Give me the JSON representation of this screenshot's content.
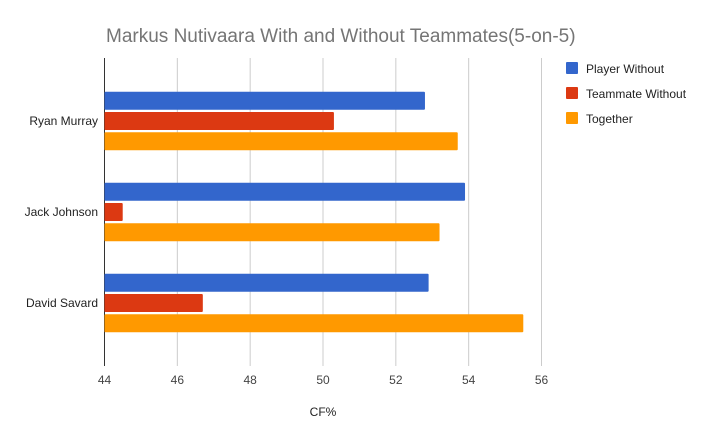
{
  "chart_data": {
    "type": "bar",
    "orientation": "horizontal",
    "title": "Markus Nutivaara With and Without Teammates(5-on-5)",
    "xlabel": "CF%",
    "ylabel": "",
    "categories": [
      "Ryan Murray",
      "Jack Johnson",
      "David Savard"
    ],
    "series": [
      {
        "name": "Player Without",
        "color": "#3366cc",
        "values": [
          52.8,
          53.9,
          52.9
        ]
      },
      {
        "name": "Teammate Without",
        "color": "#dc3912",
        "values": [
          50.3,
          44.5,
          46.7
        ]
      },
      {
        "name": "Together",
        "color": "#ff9900",
        "values": [
          53.7,
          53.2,
          55.5
        ]
      }
    ],
    "xlim": [
      44,
      56
    ],
    "xticks": [
      "44",
      "46",
      "48",
      "50",
      "52",
      "54",
      "56"
    ],
    "grid": true,
    "legend_position": "right"
  }
}
